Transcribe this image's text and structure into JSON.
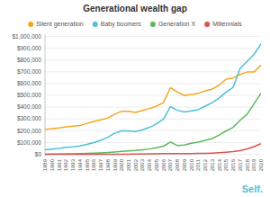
{
  "chart_data": {
    "type": "line",
    "title": "Generational wealth gap",
    "x": [
      1989,
      1990,
      1991,
      1992,
      1993,
      1994,
      1995,
      1996,
      1997,
      1998,
      1999,
      2000,
      2001,
      2002,
      2003,
      2004,
      2005,
      2006,
      2007,
      2008,
      2009,
      2010,
      2011,
      2012,
      2013,
      2014,
      2015,
      2016,
      2017,
      2018,
      2019,
      2020
    ],
    "series": [
      {
        "name": "Silent generation",
        "color": "#F5A623",
        "values": [
          210000,
          218000,
          222000,
          232000,
          238000,
          243000,
          262000,
          278000,
          292000,
          308000,
          338000,
          365000,
          365000,
          355000,
          372000,
          388000,
          408000,
          438000,
          565000,
          528000,
          498000,
          508000,
          518000,
          538000,
          553000,
          588000,
          638000,
          648000,
          678000,
          698000,
          698000,
          758000
        ]
      },
      {
        "name": "Baby boomers",
        "color": "#4DC0D8",
        "values": [
          38000,
          43000,
          48000,
          58000,
          63000,
          70000,
          83000,
          98000,
          118000,
          143000,
          178000,
          198000,
          198000,
          193000,
          208000,
          228000,
          258000,
          298000,
          403000,
          373000,
          358000,
          368000,
          378000,
          408000,
          438000,
          478000,
          528000,
          568000,
          728000,
          788000,
          848000,
          938000
        ]
      },
      {
        "name": "Generation X",
        "color": "#5CB85C",
        "values": [
          0,
          500,
          1500,
          2500,
          3500,
          4500,
          6500,
          8500,
          11500,
          14500,
          19000,
          24000,
          27000,
          31000,
          37000,
          44000,
          54000,
          68000,
          103000,
          73000,
          78000,
          93000,
          103000,
          118000,
          133000,
          163000,
          198000,
          228000,
          288000,
          338000,
          428000,
          518000
        ]
      },
      {
        "name": "Millennials",
        "color": "#D9534F",
        "values": [
          0,
          0,
          0,
          0,
          0,
          0,
          0,
          0,
          0,
          0,
          0,
          0,
          0,
          500,
          1500,
          2500,
          3500,
          4500,
          5500,
          4500,
          4500,
          5500,
          6500,
          7500,
          9500,
          12500,
          16500,
          21500,
          29500,
          44500,
          64500,
          89500
        ]
      }
    ],
    "xlim": [
      1989,
      2020
    ],
    "xticks": [
      1989,
      1990,
      1991,
      1992,
      1993,
      1994,
      1995,
      1996,
      1997,
      1998,
      1999,
      2000,
      2001,
      2002,
      2003,
      2004,
      2005,
      2006,
      2007,
      2008,
      2009,
      2010,
      2011,
      2012,
      2013,
      2014,
      2015,
      2016,
      2017,
      2018,
      2019,
      2020
    ],
    "ylim": [
      -20000,
      1020000
    ],
    "yticks": [
      {
        "value": 0,
        "label": "$0"
      },
      {
        "value": 100000,
        "label": "$100,000"
      },
      {
        "value": 200000,
        "label": "$200,000"
      },
      {
        "value": 300000,
        "label": "$300,000"
      },
      {
        "value": 400000,
        "label": "$400,000"
      },
      {
        "value": 500000,
        "label": "$500,000"
      },
      {
        "value": 600000,
        "label": "$600,000"
      },
      {
        "value": 700000,
        "label": "$700,000"
      },
      {
        "value": 800000,
        "label": "$800,000"
      },
      {
        "value": 900000,
        "label": "$900,000"
      },
      {
        "value": 1000000,
        "label": "$1,000,000"
      }
    ],
    "grid": true,
    "legend": "top",
    "annotations": [
      {
        "text": "Self.",
        "color": "#4DC0D8"
      }
    ]
  }
}
